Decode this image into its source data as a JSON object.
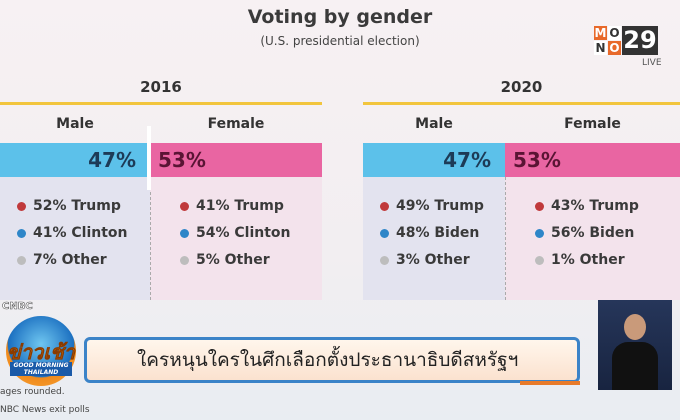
{
  "header": {
    "title": "Voting by gender",
    "subtitle": "(U.S. presidential election)"
  },
  "channel": {
    "logo_text": "MONO29",
    "live": "LIVE"
  },
  "chart_data": [
    {
      "type": "bar",
      "title": "2016",
      "categories": [
        "Male",
        "Female"
      ],
      "share": [
        47,
        53
      ],
      "breakdown": {
        "Male": [
          {
            "label": "52% Trump",
            "color": "#c0393b"
          },
          {
            "label": "41% Clinton",
            "color": "#2e86c8"
          },
          {
            "label": "7% Other",
            "color": "#bdbdbd"
          }
        ],
        "Female": [
          {
            "label": "41% Trump",
            "color": "#c0393b"
          },
          {
            "label": "54% Clinton",
            "color": "#2e86c8"
          },
          {
            "label": "5% Other",
            "color": "#bdbdbd"
          }
        ]
      },
      "share_labels": [
        "47%",
        "53%"
      ]
    },
    {
      "type": "bar",
      "title": "2020",
      "categories": [
        "Male",
        "Female"
      ],
      "share": [
        47,
        53
      ],
      "breakdown": {
        "Male": [
          {
            "label": "49% Trump",
            "color": "#c0393b"
          },
          {
            "label": "48% Biden",
            "color": "#2e86c8"
          },
          {
            "label": "3% Other",
            "color": "#bdbdbd"
          }
        ],
        "Female": [
          {
            "label": "43% Trump",
            "color": "#c0393b"
          },
          {
            "label": "56% Biden",
            "color": "#2e86c8"
          },
          {
            "label": "1% Other",
            "color": "#bdbdbd"
          }
        ]
      },
      "share_labels": [
        "47%",
        "53%"
      ]
    }
  ],
  "colors": {
    "male": "#5cc1ea",
    "female": "#e965a2",
    "year_line": "#f2c53d"
  },
  "source": {
    "cnbc": "CNBC",
    "note1": "ages rounded.",
    "note2": "NBC News exit polls"
  },
  "show": {
    "logo_text": "ข่าวเช้า",
    "logo_sub1": "GOOD MORNING",
    "logo_sub2": "THAILAND",
    "headline": "ใครหนุนใครในศึกเลือกตั้งประธานาธิบดีสหรัฐฯ"
  }
}
